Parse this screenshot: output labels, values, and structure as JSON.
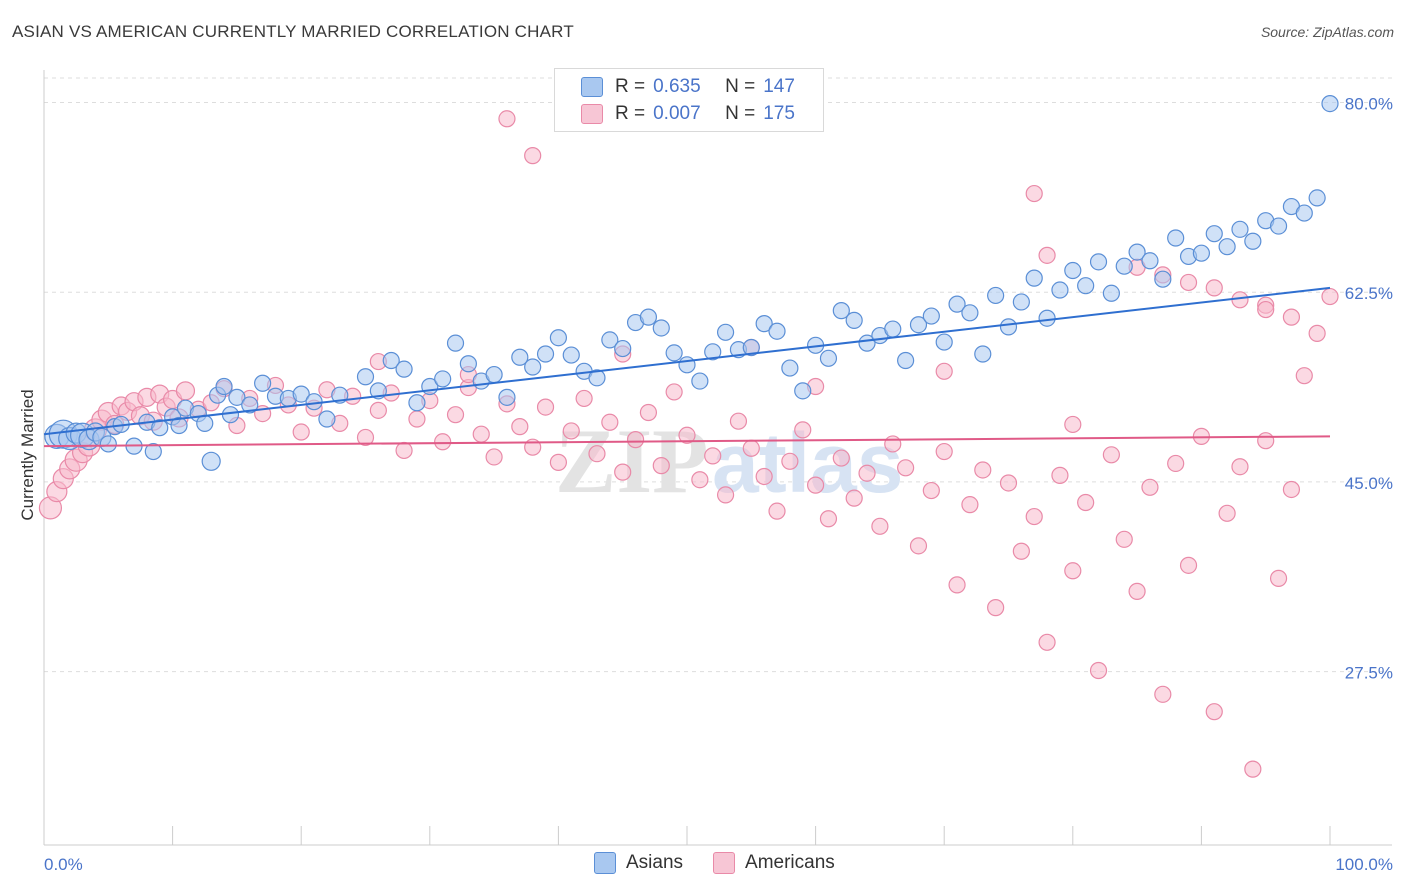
{
  "header": {
    "title": "ASIAN VS AMERICAN CURRENTLY MARRIED CORRELATION CHART",
    "source": "Source: ZipAtlas.com"
  },
  "colors": {
    "asians_fill": "#a9c8f0",
    "asians_stroke": "#5b8fd6",
    "asians_line": "#2f6fd0",
    "americans_fill": "#f7b9cc",
    "americans_stroke": "#e98aa8",
    "americans_line": "#e05a87",
    "tick_label": "#4a74c9",
    "grid": "#dddddd"
  },
  "legend": {
    "rows": [
      {
        "r_label": "R =",
        "r_value": "0.635",
        "n_label": "N =",
        "n_value": "147",
        "series": "asians"
      },
      {
        "r_label": "R =",
        "r_value": "0.007",
        "n_label": "N =",
        "n_value": "175",
        "series": "americans"
      }
    ]
  },
  "bottom_legend": {
    "asians": "Asians",
    "americans": "Americans"
  },
  "watermark": {
    "zip": "ZIP",
    "atlas": "atlas"
  },
  "chart_data": {
    "type": "scatter",
    "title": "ASIAN VS AMERICAN CURRENTLY MARRIED CORRELATION CHART",
    "xlabel": "",
    "ylabel": "Currently Married",
    "xlim": [
      0,
      100
    ],
    "ylim": [
      11.5,
      83
    ],
    "x_tick_labels": [
      "0.0%",
      "100.0%"
    ],
    "y_ticks": [
      27.5,
      45.0,
      62.5,
      80.0
    ],
    "y_tick_labels": [
      "27.5%",
      "45.0%",
      "62.5%",
      "80.0%"
    ],
    "grid": "horizontal dashed",
    "legend_position": "top-center",
    "series": [
      {
        "name": "Asians",
        "r": 0.635,
        "n": 147,
        "trend": {
          "x": [
            0,
            100
          ],
          "y": [
            49.4,
            62.9
          ]
        },
        "points": [
          [
            1,
            49.2,
            10
          ],
          [
            1.5,
            49.4,
            12
          ],
          [
            2,
            49,
            9
          ],
          [
            2.5,
            49.5,
            8
          ],
          [
            3,
            49.3,
            10
          ],
          [
            3.5,
            48.9,
            8
          ],
          [
            4,
            49.6,
            7
          ],
          [
            4.5,
            49.1,
            7
          ],
          [
            5,
            48.5,
            6
          ],
          [
            5.5,
            50.1,
            6
          ],
          [
            6,
            50.3,
            6
          ],
          [
            7,
            48.3,
            6
          ],
          [
            8,
            50.5,
            6
          ],
          [
            8.5,
            47.8,
            6
          ],
          [
            9,
            50,
            6
          ],
          [
            10,
            51,
            6
          ],
          [
            10.5,
            50.2,
            6
          ],
          [
            11,
            51.8,
            6
          ],
          [
            12,
            51.3,
            6
          ],
          [
            12.5,
            50.4,
            6
          ],
          [
            13,
            46.9,
            7
          ],
          [
            13.5,
            53,
            6
          ],
          [
            14,
            53.8,
            6
          ],
          [
            14.5,
            51.2,
            6
          ],
          [
            15,
            52.8,
            6
          ],
          [
            16,
            52.1,
            6
          ],
          [
            17,
            54.1,
            6
          ],
          [
            18,
            52.9,
            6
          ],
          [
            19,
            52.7,
            6
          ],
          [
            20,
            53.1,
            6
          ],
          [
            21,
            52.4,
            6
          ],
          [
            22,
            50.8,
            6
          ],
          [
            23,
            53,
            6
          ],
          [
            25,
            54.7,
            6
          ],
          [
            26,
            53.4,
            6
          ],
          [
            27,
            56.2,
            6
          ],
          [
            28,
            55.4,
            6
          ],
          [
            29,
            52.3,
            6
          ],
          [
            30,
            53.8,
            6
          ],
          [
            31,
            54.5,
            6
          ],
          [
            32,
            57.8,
            6
          ],
          [
            33,
            55.9,
            6
          ],
          [
            34,
            54.3,
            6
          ],
          [
            35,
            54.9,
            6
          ],
          [
            36,
            52.8,
            6
          ],
          [
            37,
            56.5,
            6
          ],
          [
            38,
            55.6,
            6
          ],
          [
            39,
            56.8,
            6
          ],
          [
            40,
            58.3,
            6
          ],
          [
            41,
            56.7,
            6
          ],
          [
            42,
            55.2,
            6
          ],
          [
            43,
            54.6,
            6
          ],
          [
            44,
            58.1,
            6
          ],
          [
            45,
            57.3,
            6
          ],
          [
            46,
            59.7,
            6
          ],
          [
            47,
            60.2,
            6
          ],
          [
            48,
            59.2,
            6
          ],
          [
            49,
            56.9,
            6
          ],
          [
            50,
            55.8,
            6
          ],
          [
            51,
            54.3,
            6
          ],
          [
            52,
            57,
            6
          ],
          [
            53,
            58.8,
            6
          ],
          [
            54,
            57.2,
            6
          ],
          [
            55,
            57.4,
            6
          ],
          [
            56,
            59.6,
            6
          ],
          [
            57,
            58.9,
            6
          ],
          [
            58,
            55.5,
            6
          ],
          [
            59,
            53.4,
            6
          ],
          [
            60,
            57.6,
            6
          ],
          [
            61,
            56.4,
            6
          ],
          [
            62,
            60.8,
            6
          ],
          [
            63,
            59.9,
            6
          ],
          [
            64,
            57.8,
            6
          ],
          [
            65,
            58.5,
            6
          ],
          [
            66,
            59.1,
            6
          ],
          [
            67,
            56.2,
            6
          ],
          [
            68,
            59.5,
            6
          ],
          [
            69,
            60.3,
            6
          ],
          [
            70,
            57.9,
            6
          ],
          [
            71,
            61.4,
            6
          ],
          [
            72,
            60.6,
            6
          ],
          [
            73,
            56.8,
            6
          ],
          [
            74,
            62.2,
            6
          ],
          [
            75,
            59.3,
            6
          ],
          [
            76,
            61.6,
            6
          ],
          [
            77,
            63.8,
            6
          ],
          [
            78,
            60.1,
            6
          ],
          [
            79,
            62.7,
            6
          ],
          [
            80,
            64.5,
            6
          ],
          [
            81,
            63.1,
            6
          ],
          [
            82,
            65.3,
            6
          ],
          [
            83,
            62.4,
            6
          ],
          [
            84,
            64.9,
            6
          ],
          [
            85,
            66.2,
            6
          ],
          [
            86,
            65.4,
            6
          ],
          [
            87,
            63.7,
            6
          ],
          [
            88,
            67.5,
            6
          ],
          [
            89,
            65.8,
            6
          ],
          [
            90,
            66.1,
            6
          ],
          [
            91,
            67.9,
            6
          ],
          [
            92,
            66.7,
            6
          ],
          [
            93,
            68.3,
            6
          ],
          [
            94,
            67.2,
            6
          ],
          [
            95,
            69.1,
            6
          ],
          [
            96,
            68.6,
            6
          ],
          [
            97,
            70.4,
            6
          ],
          [
            98,
            69.8,
            6
          ],
          [
            99,
            71.2,
            6
          ],
          [
            100,
            79.9,
            6
          ]
        ]
      },
      {
        "name": "Americans",
        "r": 0.007,
        "n": 175,
        "trend": {
          "x": [
            0,
            100
          ],
          "y": [
            48.3,
            49.2
          ]
        },
        "points": [
          [
            0.5,
            42.6,
            9
          ],
          [
            1,
            44.1,
            8
          ],
          [
            1.5,
            45.3,
            8
          ],
          [
            2,
            46.2,
            8
          ],
          [
            2.5,
            47,
            9
          ],
          [
            3,
            47.7,
            8
          ],
          [
            3.5,
            48.4,
            9
          ],
          [
            4,
            49.8,
            9
          ],
          [
            4.5,
            50.7,
            8
          ],
          [
            5,
            51.4,
            8
          ],
          [
            5.5,
            50.3,
            7
          ],
          [
            6,
            52,
            7
          ],
          [
            6.5,
            51.5,
            7
          ],
          [
            7,
            52.4,
            7
          ],
          [
            7.5,
            51.1,
            7
          ],
          [
            8,
            52.8,
            7
          ],
          [
            8.5,
            50.6,
            7
          ],
          [
            9,
            53.1,
            7
          ],
          [
            9.5,
            51.9,
            7
          ],
          [
            10,
            52.6,
            7
          ],
          [
            10.5,
            50.9,
            7
          ],
          [
            11,
            53.4,
            7
          ],
          [
            12,
            51.7,
            6
          ],
          [
            13,
            52.3,
            6
          ],
          [
            14,
            53.6,
            6
          ],
          [
            15,
            50.2,
            6
          ],
          [
            16,
            52.7,
            6
          ],
          [
            17,
            51.3,
            6
          ],
          [
            18,
            53.9,
            6
          ],
          [
            19,
            52.1,
            6
          ],
          [
            20,
            49.6,
            6
          ],
          [
            21,
            51.8,
            6
          ],
          [
            22,
            53.5,
            6
          ],
          [
            23,
            50.4,
            6
          ],
          [
            24,
            52.9,
            6
          ],
          [
            25,
            49.1,
            6
          ],
          [
            26,
            51.6,
            6
          ],
          [
            27,
            53.2,
            6
          ],
          [
            28,
            47.9,
            6
          ],
          [
            29,
            50.8,
            6
          ],
          [
            30,
            52.5,
            6
          ],
          [
            31,
            48.7,
            6
          ],
          [
            32,
            51.2,
            6
          ],
          [
            33,
            53.7,
            6
          ],
          [
            34,
            49.4,
            6
          ],
          [
            35,
            47.3,
            6
          ],
          [
            36,
            52.2,
            6
          ],
          [
            37,
            50.1,
            6
          ],
          [
            38,
            48.2,
            6
          ],
          [
            39,
            51.9,
            6
          ],
          [
            40,
            46.8,
            6
          ],
          [
            41,
            49.7,
            6
          ],
          [
            42,
            52.7,
            6
          ],
          [
            43,
            47.6,
            6
          ],
          [
            44,
            50.5,
            6
          ],
          [
            45,
            45.9,
            6
          ],
          [
            46,
            48.9,
            6
          ],
          [
            47,
            51.4,
            6
          ],
          [
            48,
            46.5,
            6
          ],
          [
            49,
            53.3,
            6
          ],
          [
            50,
            49.3,
            6
          ],
          [
            51,
            45.2,
            6
          ],
          [
            52,
            47.4,
            6
          ],
          [
            53,
            43.8,
            6
          ],
          [
            54,
            50.6,
            6
          ],
          [
            55,
            48.1,
            6
          ],
          [
            56,
            45.5,
            6
          ],
          [
            57,
            42.3,
            6
          ],
          [
            58,
            46.9,
            6
          ],
          [
            59,
            49.8,
            6
          ],
          [
            60,
            44.7,
            6
          ],
          [
            61,
            41.6,
            6
          ],
          [
            62,
            47.2,
            6
          ],
          [
            63,
            43.5,
            6
          ],
          [
            64,
            45.8,
            6
          ],
          [
            65,
            40.9,
            6
          ],
          [
            66,
            48.5,
            6
          ],
          [
            67,
            46.3,
            6
          ],
          [
            68,
            39.1,
            6
          ],
          [
            69,
            44.2,
            6
          ],
          [
            70,
            47.8,
            6
          ],
          [
            71,
            35.5,
            6
          ],
          [
            72,
            42.9,
            6
          ],
          [
            73,
            46.1,
            6
          ],
          [
            74,
            33.4,
            6
          ],
          [
            75,
            44.9,
            6
          ],
          [
            76,
            38.6,
            6
          ],
          [
            77,
            41.8,
            6
          ],
          [
            78,
            30.2,
            6
          ],
          [
            79,
            45.6,
            6
          ],
          [
            80,
            36.8,
            6
          ],
          [
            81,
            43.1,
            6
          ],
          [
            82,
            27.6,
            6
          ],
          [
            83,
            47.5,
            6
          ],
          [
            84,
            39.7,
            6
          ],
          [
            85,
            34.9,
            6
          ],
          [
            86,
            44.5,
            6
          ],
          [
            87,
            25.4,
            6
          ],
          [
            88,
            46.7,
            6
          ],
          [
            89,
            37.3,
            6
          ],
          [
            90,
            49.2,
            6
          ],
          [
            91,
            23.8,
            6
          ],
          [
            92,
            42.1,
            6
          ],
          [
            93,
            46.4,
            6
          ],
          [
            94,
            18.5,
            6
          ],
          [
            95,
            48.8,
            6
          ],
          [
            96,
            36.1,
            6
          ],
          [
            97,
            44.3,
            6
          ],
          [
            98,
            54.8,
            6
          ],
          [
            99,
            58.7,
            6
          ],
          [
            36,
            78.5,
            6
          ],
          [
            38,
            75.1,
            6
          ],
          [
            77,
            71.6,
            6
          ],
          [
            78,
            65.9,
            6
          ],
          [
            85,
            64.8,
            6
          ],
          [
            87,
            64.1,
            6
          ],
          [
            89,
            63.4,
            6
          ],
          [
            91,
            62.9,
            6
          ],
          [
            93,
            61.8,
            6
          ],
          [
            95,
            61.3,
            6
          ],
          [
            97,
            60.2,
            6
          ],
          [
            100,
            62.1,
            6
          ],
          [
            26,
            56.1,
            6
          ],
          [
            33,
            54.9,
            6
          ],
          [
            45,
            56.8,
            6
          ],
          [
            55,
            57.4,
            6
          ],
          [
            60,
            53.8,
            6
          ],
          [
            70,
            55.2,
            6
          ],
          [
            80,
            50.3,
            6
          ],
          [
            95,
            60.9,
            6
          ]
        ]
      }
    ]
  }
}
